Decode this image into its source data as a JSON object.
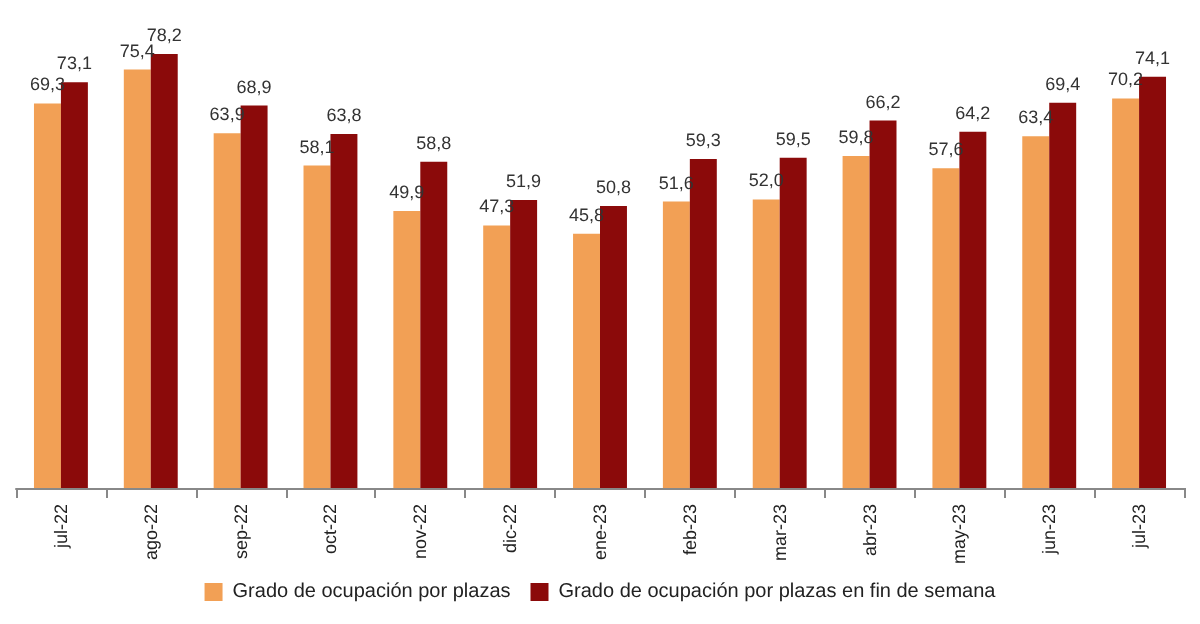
{
  "chart_data": {
    "type": "bar",
    "categories": [
      "jul-22",
      "ago-22",
      "sep-22",
      "oct-22",
      "nov-22",
      "dic-22",
      "ene-23",
      "feb-23",
      "mar-23",
      "abr-23",
      "may-23",
      "jun-23",
      "jul-23"
    ],
    "series": [
      {
        "name": "Grado de ocupación por plazas",
        "color": "#f2a055",
        "values": [
          69.3,
          75.4,
          63.9,
          58.1,
          49.9,
          47.3,
          45.8,
          51.6,
          52.0,
          59.8,
          57.6,
          63.4,
          70.2
        ],
        "value_labels": [
          "69,3",
          "75,4",
          "63,9",
          "58,1",
          "49,9",
          "47,3",
          "45,8",
          "51,6",
          "52,0",
          "59,8",
          "57,6",
          "63,4",
          "70,2"
        ]
      },
      {
        "name": "Grado de ocupación por plazas en fin de semana",
        "color": "#8b0a0a",
        "values": [
          73.1,
          78.2,
          68.9,
          63.8,
          58.8,
          51.9,
          50.8,
          59.3,
          59.5,
          66.2,
          64.2,
          69.4,
          74.1
        ],
        "value_labels": [
          "73,1",
          "78,2",
          "68,9",
          "63,8",
          "58,8",
          "51,9",
          "50,8",
          "59,3",
          "59,5",
          "66,2",
          "64,2",
          "69,4",
          "74,1"
        ]
      }
    ],
    "legend": "bottom"
  }
}
